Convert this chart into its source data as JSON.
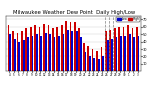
{
  "title": "Milwaukee Weather Dew Point  Daily High/Low",
  "title_fontsize": 3.8,
  "bar_width": 0.4,
  "ylim": [
    0,
    75
  ],
  "yticks": [
    10,
    20,
    30,
    40,
    50,
    60,
    70
  ],
  "ytick_labels": [
    "1",
    "2",
    "3",
    "4",
    "5",
    "6",
    "7"
  ],
  "background_color": "#ffffff",
  "grid_color": "#cccccc",
  "high_color": "#cc0000",
  "low_color": "#0000cc",
  "legend_high": "High",
  "legend_low": "Low",
  "x_labels": [
    "4",
    "5",
    "6",
    "7",
    "8",
    "9",
    "10",
    "11",
    "12",
    "13",
    "14",
    "15",
    "16",
    "17",
    "18",
    "19",
    "20",
    "21",
    "22",
    "23",
    "24",
    "25",
    "26",
    "27",
    "28",
    "29",
    "30",
    "1",
    "2",
    "3"
  ],
  "highs": [
    62,
    55,
    52,
    55,
    58,
    60,
    62,
    60,
    64,
    63,
    58,
    60,
    62,
    68,
    66,
    66,
    58,
    38,
    34,
    30,
    28,
    33,
    54,
    56,
    58,
    60,
    60,
    63,
    58,
    60
  ],
  "lows": [
    50,
    44,
    40,
    42,
    46,
    48,
    50,
    48,
    52,
    50,
    46,
    48,
    50,
    56,
    54,
    54,
    46,
    26,
    20,
    18,
    16,
    20,
    42,
    44,
    46,
    48,
    48,
    50,
    46,
    48
  ],
  "dashed_vlines": [
    21.5,
    22.5,
    23.5
  ],
  "figsize": [
    1.6,
    0.87
  ],
  "dpi": 100
}
